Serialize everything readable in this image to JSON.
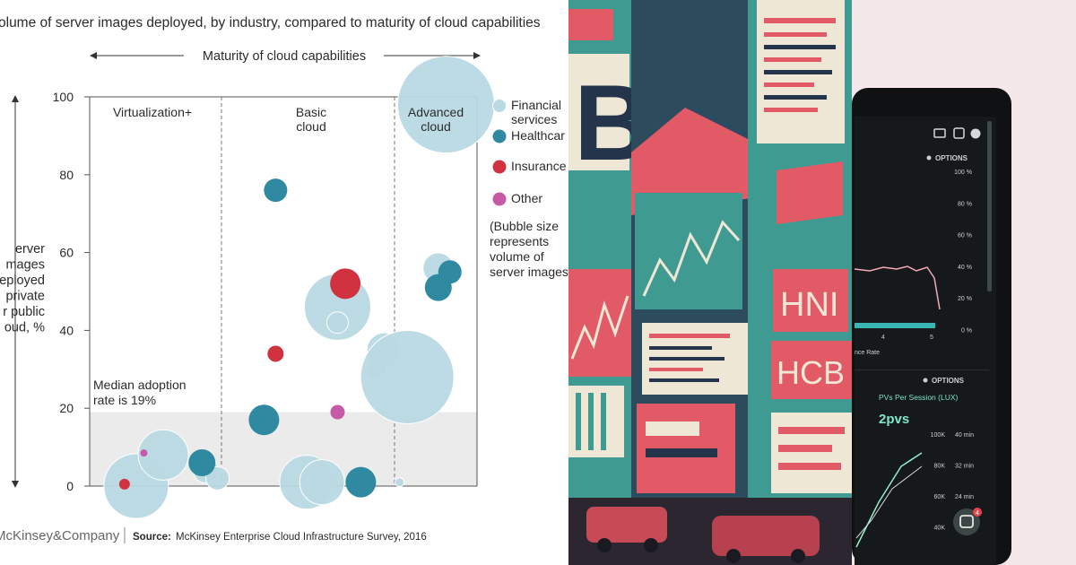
{
  "colors": {
    "financial": "#b9d9e3",
    "healthcare": "#2f8aa1",
    "insurance": "#d03240",
    "other": "#c75aa6",
    "median_band": "#ebebeb",
    "text": "#2b2b2b",
    "art_teal": "#3f9b92",
    "art_coral": "#e25a66",
    "art_cream": "#efe7d6"
  },
  "chart_data": {
    "type": "scatter",
    "title": "olume of server images deployed, by industry, compared to maturity of cloud capabilities",
    "xaxis_label": "Maturity of cloud capabilities",
    "yaxis_label_lines": [
      "erver",
      "mages",
      "eployed",
      "private",
      "r public",
      "oud, %"
    ],
    "yticks": [
      0,
      20,
      40,
      60,
      80,
      100
    ],
    "ylim": [
      0,
      100
    ],
    "segments": [
      {
        "label_lines": [
          "Virtualization+"
        ]
      },
      {
        "label_lines": [
          "Basic",
          "cloud"
        ]
      },
      {
        "label_lines": [
          "Advanced",
          "cloud"
        ]
      }
    ],
    "median": {
      "value": 19,
      "label_lines": [
        "Median adoption",
        "rate is 19%"
      ]
    },
    "legend": [
      {
        "key": "financial",
        "label_lines": [
          "Financial",
          "services"
        ]
      },
      {
        "key": "healthcare",
        "label_lines": [
          "Healthcar"
        ]
      },
      {
        "key": "insurance",
        "label_lines": [
          "Insurance"
        ]
      },
      {
        "key": "other",
        "label_lines": [
          "Other"
        ]
      }
    ],
    "legend_note_lines": [
      "(Bubble size",
      "represents",
      "volume of",
      "server images"
    ],
    "series": [
      {
        "key": "financial",
        "points": [
          {
            "x": 1.2,
            "y": 0,
            "size": 36
          },
          {
            "x": 1.9,
            "y": 8,
            "size": 28
          },
          {
            "x": 3.0,
            "y": 4,
            "size": 14
          },
          {
            "x": 3.3,
            "y": 2,
            "size": 13
          },
          {
            "x": 5.6,
            "y": 1,
            "size": 30
          },
          {
            "x": 6.0,
            "y": 1,
            "size": 25
          },
          {
            "x": 6.4,
            "y": 46,
            "size": 37
          },
          {
            "x": 6.4,
            "y": 42,
            "size": 12
          },
          {
            "x": 7.6,
            "y": 35,
            "size": 19
          },
          {
            "x": 7.4,
            "y": 30,
            "size": 11
          },
          {
            "x": 8.2,
            "y": 28,
            "size": 52
          },
          {
            "x": 8.0,
            "y": 1,
            "size": 5
          },
          {
            "x": 9.0,
            "y": 56,
            "size": 17
          },
          {
            "x": 9.2,
            "y": 98,
            "size": 54
          }
        ]
      },
      {
        "key": "healthcare",
        "points": [
          {
            "x": 2.9,
            "y": 6,
            "size": 15
          },
          {
            "x": 4.5,
            "y": 17,
            "size": 17
          },
          {
            "x": 4.8,
            "y": 76,
            "size": 13
          },
          {
            "x": 7.0,
            "y": 1,
            "size": 17
          },
          {
            "x": 9.0,
            "y": 51,
            "size": 15
          },
          {
            "x": 9.3,
            "y": 55,
            "size": 13
          }
        ]
      },
      {
        "key": "insurance",
        "points": [
          {
            "x": 0.9,
            "y": 0.5,
            "size": 6
          },
          {
            "x": 4.8,
            "y": 34,
            "size": 9
          },
          {
            "x": 6.6,
            "y": 52,
            "size": 17
          }
        ]
      },
      {
        "key": "other",
        "points": [
          {
            "x": 1.4,
            "y": 8.5,
            "size": 4
          },
          {
            "x": 6.4,
            "y": 19,
            "size": 8
          }
        ]
      }
    ]
  },
  "footer": {
    "logo": "McKinsey&Company",
    "source_label": "Source:",
    "source_text": "McKinsey Enterprise Cloud Infrastructure Survey, 2016"
  },
  "art": {
    "big_letter": "B",
    "sign1": "HNI",
    "sign2": "HCB"
  },
  "dashboard": {
    "options1": "OPTIONS",
    "options2": "OPTIONS",
    "pct_ticks": [
      "100 %",
      "80 %",
      "60 %",
      "40 %",
      "20 %",
      "0 %"
    ],
    "x_ticks": [
      "4",
      "5"
    ],
    "rate_label": "nce Rate",
    "pvs_title": "PVs Per Session (LUX)",
    "pvs_value": "2pvs",
    "count_ticks": [
      "100K",
      "80K",
      "60K",
      "40K"
    ],
    "min_ticks": [
      "40 min",
      "32 min",
      "24 min"
    ],
    "badge": "4"
  }
}
